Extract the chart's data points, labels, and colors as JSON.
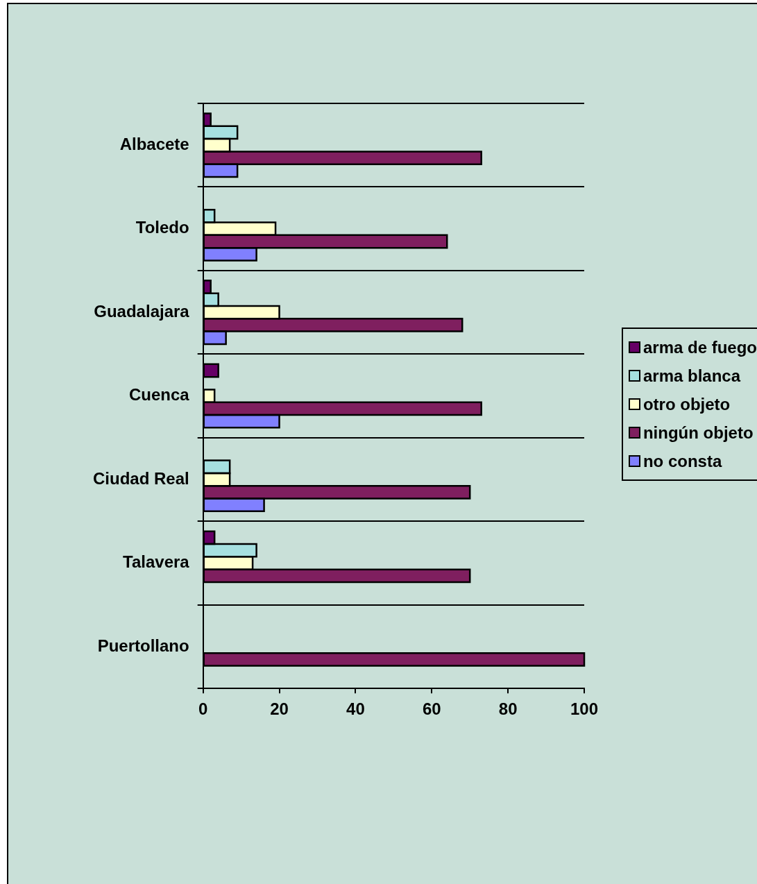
{
  "chart_data": {
    "type": "bar",
    "orientation": "horizontal",
    "categories": [
      "Albacete",
      "Toledo",
      "Guadalajara",
      "Cuenca",
      "Ciudad Real",
      "Talavera",
      "Puertollano"
    ],
    "series": [
      {
        "name": "arma de fuego",
        "color": "#660066",
        "values": [
          2,
          0,
          2,
          4,
          0,
          3,
          0
        ]
      },
      {
        "name": "arma blanca",
        "color": "#a6e0e0",
        "values": [
          9,
          3,
          4,
          0,
          7,
          14,
          0
        ]
      },
      {
        "name": "otro objeto",
        "color": "#ffffcc",
        "values": [
          7,
          19,
          20,
          3,
          7,
          13,
          0
        ]
      },
      {
        "name": "ningún objeto",
        "color": "#7f1f5f",
        "values": [
          73,
          64,
          68,
          73,
          70,
          70,
          100
        ]
      },
      {
        "name": "no consta",
        "color": "#8080ff",
        "values": [
          9,
          14,
          6,
          20,
          16,
          0,
          0
        ]
      }
    ],
    "xlim": [
      0,
      100
    ],
    "xticks": [
      0,
      20,
      40,
      60,
      80,
      100
    ],
    "grid": "y",
    "legend": "right"
  }
}
